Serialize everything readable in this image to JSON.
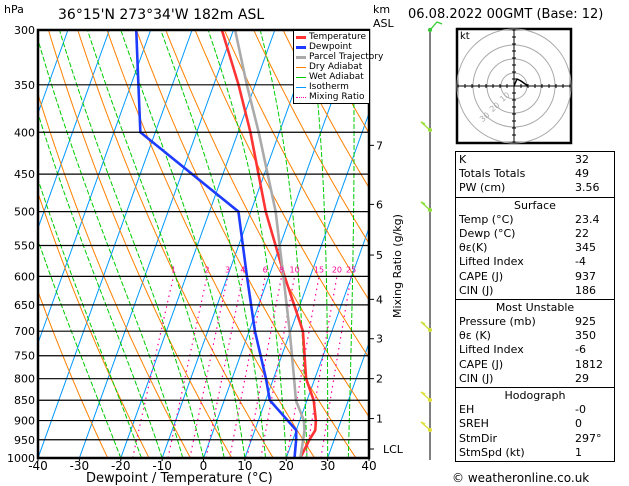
{
  "header": {
    "hpa": "hPa",
    "location": "36°15'N 273°34'W 182m ASL",
    "km": "km",
    "asl": "ASL",
    "date": "06.08.2022 00GMT (Base: 12)"
  },
  "copyright": "© weatheronline.co.uk",
  "hodograph": {
    "unit": "kt",
    "rings": [
      "10",
      "20",
      "30"
    ]
  },
  "colors": {
    "temperature": "#ff3333",
    "dewpoint": "#1e3cff",
    "parcel": "#aaaaaa",
    "dry": "#ff8000",
    "wet": "#00cc00",
    "iso": "#0099ff",
    "mix": "#ff0099"
  },
  "table": {
    "indices": [
      {
        "k": "K",
        "v": "32"
      },
      {
        "k": "Totals Totals",
        "v": "49"
      },
      {
        "k": "PW (cm)",
        "v": "3.56"
      }
    ],
    "surface": {
      "title": "Surface",
      "rows": [
        {
          "k": "Temp (°C)",
          "v": "23.4"
        },
        {
          "k": "Dewp (°C)",
          "v": "22"
        },
        {
          "k": "θε(K)",
          "v": "345"
        },
        {
          "k": "Lifted Index",
          "v": "-4"
        },
        {
          "k": "CAPE (J)",
          "v": "937"
        },
        {
          "k": "CIN (J)",
          "v": "186"
        }
      ]
    },
    "unstable": {
      "title": "Most Unstable",
      "rows": [
        {
          "k": "Pressure (mb)",
          "v": "925"
        },
        {
          "k": "θε (K)",
          "v": "350"
        },
        {
          "k": "Lifted Index",
          "v": "-6"
        },
        {
          "k": "CAPE (J)",
          "v": "1812"
        },
        {
          "k": "CIN (J)",
          "v": "29"
        }
      ]
    },
    "hodo": {
      "title": "Hodograph",
      "rows": [
        {
          "k": "EH",
          "v": "-0"
        },
        {
          "k": "SREH",
          "v": "0"
        },
        {
          "k": "StmDir",
          "v": "297°"
        },
        {
          "k": "StmSpd (kt)",
          "v": "1"
        }
      ]
    }
  },
  "chart_data": {
    "type": "line",
    "title": "36°15'N 273°34'W 182m ASL",
    "xlabel": "Dewpoint / Temperature (°C)",
    "ylabel": "hPa",
    "y2label": "Mixing Ratio (g/kg)",
    "xlim": [
      -40,
      40
    ],
    "ylim": [
      1000,
      300
    ],
    "xticks": [
      "-40",
      "-30",
      "-20",
      "-10",
      "0",
      "10",
      "20",
      "30",
      "40"
    ],
    "pressure_levels": [
      "300",
      "350",
      "400",
      "450",
      "500",
      "550",
      "600",
      "650",
      "700",
      "750",
      "800",
      "850",
      "900",
      "950",
      "1000"
    ],
    "km_ticks": [
      {
        "label": "7",
        "p": 415
      },
      {
        "label": "6",
        "p": 490
      },
      {
        "label": "5",
        "p": 565
      },
      {
        "label": "4",
        "p": 640
      },
      {
        "label": "3",
        "p": 715
      },
      {
        "label": "2",
        "p": 800
      },
      {
        "label": "1",
        "p": 895
      },
      {
        "label": "LCL",
        "p": 975
      }
    ],
    "mixing_ratio_labels": [
      "1",
      "2",
      "3",
      "4",
      "6",
      "8",
      "10",
      "15",
      "20",
      "25"
    ],
    "legend": [
      "Temperature",
      "Dewpoint",
      "Parcel Trajectory",
      "Dry Adiabat",
      "Wet Adiabat",
      "Isotherm",
      "Mixing Ratio"
    ],
    "legend_position": "top-right",
    "pressures": [
      1000,
      950,
      925,
      900,
      850,
      800,
      700,
      600,
      500,
      400,
      350,
      300
    ],
    "series": [
      {
        "name": "Temperature",
        "values": [
          23.4,
          24,
          24.6,
          23.9,
          21.6,
          17.9,
          13,
          3.8,
          -6.4,
          -17,
          -24,
          -32.8
        ]
      },
      {
        "name": "Dewpoint",
        "values": [
          22,
          20.8,
          20,
          17.1,
          11,
          8.2,
          1.4,
          -5.3,
          -13,
          -43.6,
          -48.2,
          -53.5
        ]
      },
      {
        "name": "Parcel Trajectory",
        "values": [
          23.4,
          22.5,
          22,
          21,
          17.3,
          15,
          9.8,
          3.5,
          -4,
          -15,
          -22,
          -29.6
        ]
      }
    ]
  }
}
